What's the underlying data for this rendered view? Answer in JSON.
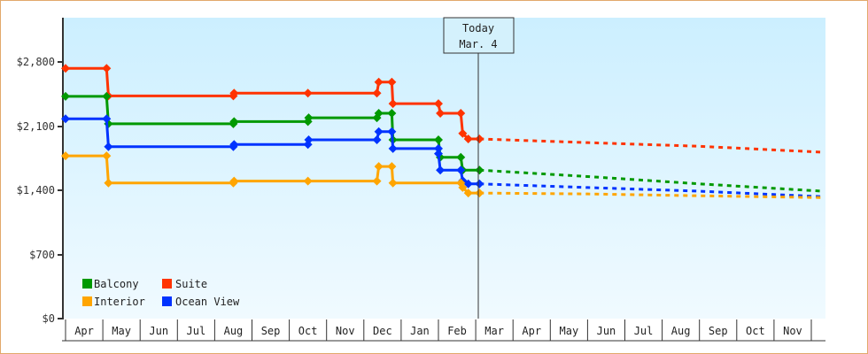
{
  "chart_data": {
    "type": "line",
    "title": "",
    "xlabel": "",
    "ylabel": "",
    "ylim": [
      0,
      3200
    ],
    "y_ticks": [
      {
        "value": 0,
        "label": "$0"
      },
      {
        "value": 700,
        "label": "$700"
      },
      {
        "value": 1400,
        "label": "$1,400"
      },
      {
        "value": 2100,
        "label": "$2,100"
      },
      {
        "value": 2800,
        "label": "$2,800"
      }
    ],
    "x_categories": [
      "Apr",
      "May",
      "Jun",
      "Jul",
      "Aug",
      "Sep",
      "Oct",
      "Nov",
      "Dec",
      "Jan",
      "Feb",
      "Mar",
      "Apr",
      "May",
      "Jun",
      "Jul",
      "Aug",
      "Sep",
      "Oct",
      "Nov"
    ],
    "grid": false,
    "legend_position": "bottom-left inside",
    "annotation": {
      "line1": "Today",
      "line2": "Mar. 4",
      "x_month_index": 11.1
    },
    "series": [
      {
        "name": "Suite",
        "color": "#ff3300",
        "historical": [
          [
            0,
            2730
          ],
          [
            1.1,
            2730
          ],
          [
            1.15,
            2430
          ],
          [
            4.5,
            2430
          ],
          [
            4.52,
            2460
          ],
          [
            6.5,
            2460
          ],
          [
            8.35,
            2460
          ],
          [
            8.4,
            2580
          ],
          [
            8.75,
            2580
          ],
          [
            8.78,
            2345
          ],
          [
            10.0,
            2345
          ],
          [
            10.05,
            2240
          ],
          [
            10.6,
            2240
          ],
          [
            10.65,
            2020
          ],
          [
            10.8,
            1960
          ],
          [
            11.1,
            1960
          ]
        ],
        "forecast": [
          [
            11.1,
            1960
          ],
          [
            14,
            1920
          ],
          [
            17,
            1880
          ],
          [
            20.3,
            1815
          ]
        ]
      },
      {
        "name": "Balcony",
        "color": "#009900",
        "historical": [
          [
            0,
            2425
          ],
          [
            1.1,
            2425
          ],
          [
            1.15,
            2125
          ],
          [
            4.5,
            2125
          ],
          [
            4.52,
            2150
          ],
          [
            6.5,
            2150
          ],
          [
            6.52,
            2190
          ],
          [
            8.35,
            2190
          ],
          [
            8.4,
            2240
          ],
          [
            8.75,
            2240
          ],
          [
            8.78,
            1950
          ],
          [
            10.0,
            1950
          ],
          [
            10.05,
            1760
          ],
          [
            10.6,
            1760
          ],
          [
            10.65,
            1620
          ],
          [
            11.1,
            1620
          ]
        ],
        "forecast": [
          [
            11.1,
            1620
          ],
          [
            14,
            1550
          ],
          [
            17,
            1470
          ],
          [
            20.3,
            1390
          ]
        ]
      },
      {
        "name": "Ocean View",
        "color": "#0033ff",
        "historical": [
          [
            0,
            2180
          ],
          [
            1.1,
            2180
          ],
          [
            1.15,
            1875
          ],
          [
            4.5,
            1875
          ],
          [
            4.52,
            1900
          ],
          [
            6.5,
            1900
          ],
          [
            6.52,
            1950
          ],
          [
            8.35,
            1950
          ],
          [
            8.4,
            2040
          ],
          [
            8.75,
            2040
          ],
          [
            8.78,
            1855
          ],
          [
            10.0,
            1855
          ],
          [
            10.0,
            1800
          ],
          [
            10.05,
            1620
          ],
          [
            10.6,
            1620
          ],
          [
            10.65,
            1505
          ],
          [
            10.8,
            1470
          ],
          [
            11.1,
            1470
          ]
        ],
        "forecast": [
          [
            11.1,
            1470
          ],
          [
            14,
            1430
          ],
          [
            17,
            1390
          ],
          [
            20.3,
            1330
          ]
        ]
      },
      {
        "name": "Interior",
        "color": "#ffa500",
        "historical": [
          [
            0,
            1775
          ],
          [
            1.1,
            1775
          ],
          [
            1.15,
            1480
          ],
          [
            4.5,
            1480
          ],
          [
            4.52,
            1500
          ],
          [
            6.5,
            1500
          ],
          [
            8.35,
            1500
          ],
          [
            8.4,
            1660
          ],
          [
            8.75,
            1660
          ],
          [
            8.78,
            1480
          ],
          [
            10.6,
            1480
          ],
          [
            10.65,
            1430
          ],
          [
            10.8,
            1370
          ],
          [
            11.1,
            1370
          ]
        ],
        "forecast": [
          [
            11.1,
            1370
          ],
          [
            14,
            1360
          ],
          [
            17,
            1340
          ],
          [
            20.3,
            1320
          ]
        ]
      }
    ]
  },
  "axis": {
    "y_labels": [
      "$2,800",
      "$2,100",
      "$1,400",
      "$700",
      "$0"
    ],
    "x_labels": [
      "Apr",
      "May",
      "Jun",
      "Jul",
      "Aug",
      "Sep",
      "Oct",
      "Nov",
      "Dec",
      "Jan",
      "Feb",
      "Mar",
      "Apr",
      "May",
      "Jun",
      "Jul",
      "Aug",
      "Sep",
      "Oct",
      "Nov"
    ]
  },
  "today_marker": {
    "line1": "Today",
    "line2": "Mar. 4"
  },
  "legend": {
    "items": [
      {
        "label": "Balcony",
        "color": "#009900"
      },
      {
        "label": "Suite",
        "color": "#ff3300"
      },
      {
        "label": "Interior",
        "color": "#ffa500"
      },
      {
        "label": "Ocean View",
        "color": "#0033ff"
      }
    ]
  }
}
